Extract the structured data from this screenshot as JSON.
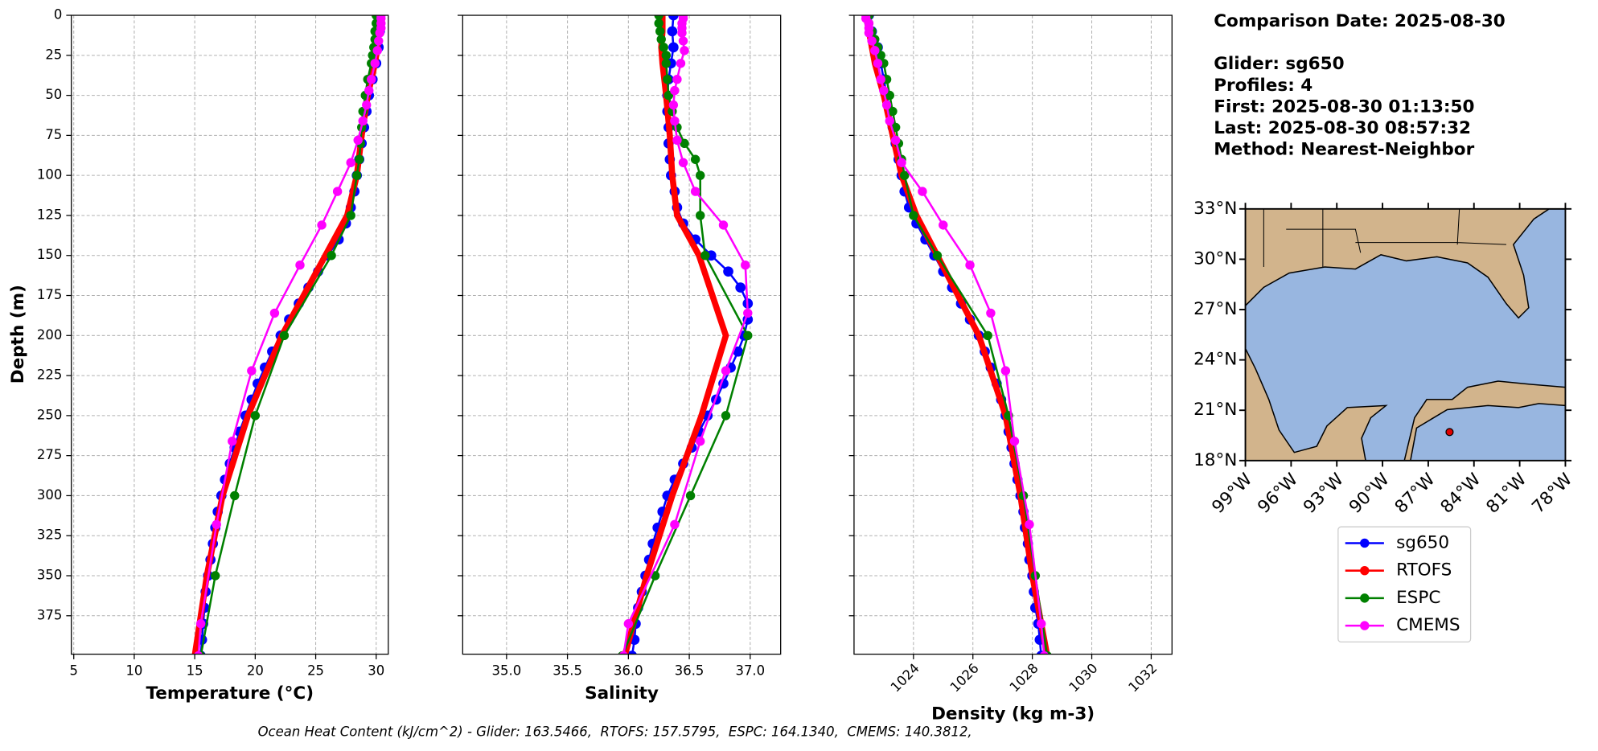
{
  "chart_data": [
    {
      "type": "line",
      "xlabel": "Temperature (°C)",
      "ylabel": "Depth (m)",
      "xlim": [
        4.8,
        31.0
      ],
      "ylim": [
        399,
        0
      ],
      "xticks": [
        5,
        10,
        15,
        20,
        25,
        30
      ],
      "yticks": [
        0,
        25,
        50,
        75,
        100,
        125,
        150,
        175,
        200,
        225,
        250,
        275,
        300,
        325,
        350,
        375
      ],
      "grid": true,
      "series": [
        {
          "name": "sg650",
          "color": "#0000ff",
          "linewidth": 2,
          "marker_size": 5,
          "depths": [
            0,
            10,
            20,
            30,
            40,
            50,
            60,
            70,
            80,
            90,
            100,
            110,
            120,
            130,
            140,
            150,
            160,
            170,
            180,
            190,
            200,
            210,
            220,
            230,
            240,
            250,
            260,
            270,
            280,
            290,
            300,
            310,
            320,
            330,
            340,
            350,
            360,
            370,
            380,
            390,
            400
          ],
          "values": [
            30.3,
            30.3,
            30.2,
            30.0,
            29.7,
            29.4,
            29.2,
            29.0,
            28.8,
            28.6,
            28.4,
            28.2,
            27.9,
            27.5,
            26.9,
            26.0,
            25.2,
            24.4,
            23.6,
            22.8,
            22.1,
            21.4,
            20.8,
            20.2,
            19.7,
            19.2,
            18.7,
            18.3,
            17.9,
            17.5,
            17.2,
            16.9,
            16.7,
            16.5,
            16.3,
            16.1,
            15.9,
            15.8,
            15.7,
            15.6,
            15.5
          ]
        },
        {
          "name": "RTOFS",
          "color": "#ff0000",
          "linewidth": 6,
          "marker_size": 3,
          "depths": [
            0,
            10,
            20,
            30,
            50,
            75,
            100,
            125,
            150,
            200,
            250,
            300,
            350,
            400
          ],
          "values": [
            30.2,
            30.2,
            30.1,
            29.9,
            29.3,
            28.8,
            28.4,
            27.6,
            25.8,
            22.2,
            19.4,
            17.3,
            16.0,
            15.0
          ]
        },
        {
          "name": "ESPC",
          "color": "#008000",
          "linewidth": 2,
          "marker_size": 4.5,
          "depths": [
            0,
            5,
            10,
            15,
            20,
            25,
            30,
            40,
            50,
            60,
            70,
            80,
            90,
            100,
            125,
            150,
            200,
            250,
            300,
            350,
            400
          ],
          "values": [
            30.0,
            30.0,
            29.9,
            29.9,
            29.8,
            29.7,
            29.6,
            29.3,
            29.1,
            28.9,
            28.8,
            28.7,
            28.6,
            28.4,
            27.9,
            26.3,
            22.4,
            20.0,
            18.3,
            16.7,
            15.5
          ]
        },
        {
          "name": "CMEMS",
          "color": "#ff00ff",
          "linewidth": 2,
          "marker_size": 4.5,
          "depths": [
            0,
            2,
            5,
            8,
            11,
            16,
            22,
            30,
            40,
            47,
            56,
            66,
            78,
            92,
            110,
            131,
            156,
            186,
            222,
            266,
            318,
            380,
            400
          ],
          "values": [
            30.4,
            30.4,
            30.4,
            30.4,
            30.3,
            30.2,
            30.1,
            29.9,
            29.6,
            29.4,
            29.2,
            28.9,
            28.5,
            27.9,
            26.8,
            25.5,
            23.7,
            21.6,
            19.7,
            18.1,
            16.8,
            15.5,
            15.3
          ]
        }
      ]
    },
    {
      "type": "line",
      "xlabel": "Salinity",
      "ytick_labels": false,
      "xlim": [
        34.64,
        37.25
      ],
      "ylim": [
        399,
        0
      ],
      "xticks": [
        {
          "value": 35,
          "label": "35.0"
        },
        35.5,
        {
          "value": 36,
          "label": "36.0"
        },
        36.5,
        {
          "value": 37,
          "label": "37.0"
        }
      ],
      "yticks": [
        0,
        25,
        50,
        75,
        100,
        125,
        150,
        175,
        200,
        225,
        250,
        275,
        300,
        325,
        350,
        375
      ],
      "grid": true,
      "series": [
        {
          "name": "sg650",
          "color": "#0000ff",
          "linewidth": 2,
          "marker_size": 5,
          "depths": [
            0,
            10,
            20,
            30,
            40,
            50,
            60,
            70,
            80,
            90,
            100,
            110,
            120,
            130,
            140,
            150,
            160,
            170,
            180,
            190,
            200,
            210,
            220,
            230,
            240,
            250,
            260,
            270,
            280,
            290,
            300,
            310,
            320,
            330,
            340,
            350,
            360,
            370,
            380,
            390,
            400
          ],
          "values": [
            36.37,
            36.36,
            36.37,
            36.35,
            36.33,
            36.32,
            36.32,
            36.33,
            36.33,
            36.34,
            36.35,
            36.38,
            36.4,
            36.45,
            36.55,
            36.68,
            36.82,
            36.92,
            36.98,
            36.98,
            36.95,
            36.9,
            36.84,
            36.78,
            36.72,
            36.65,
            36.58,
            36.52,
            36.45,
            36.38,
            36.32,
            36.28,
            36.24,
            36.2,
            36.17,
            36.14,
            36.11,
            36.08,
            36.06,
            36.05,
            36.03
          ]
        },
        {
          "name": "RTOFS",
          "color": "#ff0000",
          "linewidth": 6,
          "marker_size": 3,
          "depths": [
            0,
            10,
            20,
            30,
            50,
            75,
            100,
            125,
            150,
            200,
            250,
            300,
            350,
            400
          ],
          "values": [
            36.28,
            36.28,
            36.27,
            36.28,
            36.31,
            36.34,
            36.36,
            36.4,
            36.58,
            36.8,
            36.6,
            36.36,
            36.15,
            35.97
          ]
        },
        {
          "name": "ESPC",
          "color": "#008000",
          "linewidth": 2,
          "marker_size": 4.5,
          "depths": [
            0,
            5,
            10,
            15,
            20,
            25,
            30,
            40,
            50,
            60,
            70,
            80,
            90,
            100,
            125,
            150,
            200,
            250,
            300,
            350,
            400
          ],
          "values": [
            36.25,
            36.25,
            36.26,
            36.27,
            36.29,
            36.31,
            36.31,
            36.32,
            36.33,
            36.36,
            36.4,
            36.46,
            36.55,
            36.59,
            36.59,
            36.63,
            36.98,
            36.8,
            36.51,
            36.22,
            35.95
          ]
        },
        {
          "name": "CMEMS",
          "color": "#ff00ff",
          "linewidth": 2,
          "marker_size": 4.5,
          "depths": [
            0,
            2,
            5,
            8,
            11,
            16,
            22,
            30,
            40,
            47,
            56,
            66,
            78,
            92,
            110,
            131,
            156,
            186,
            222,
            266,
            318,
            380,
            400
          ],
          "values": [
            36.45,
            36.45,
            36.44,
            36.44,
            36.44,
            36.45,
            36.46,
            36.43,
            36.4,
            36.38,
            36.37,
            36.38,
            36.4,
            36.45,
            36.55,
            36.78,
            36.96,
            36.98,
            36.8,
            36.59,
            36.38,
            36.0,
            35.96
          ]
        }
      ]
    },
    {
      "type": "line",
      "xlabel": "Density (kg m-3)",
      "ytick_labels": false,
      "xtick_rotation": -45,
      "xlim": [
        1022.0,
        1032.7
      ],
      "ylim": [
        399,
        0
      ],
      "xticks": [
        1024,
        1026,
        1028,
        1030,
        1032
      ],
      "yticks": [
        0,
        25,
        50,
        75,
        100,
        125,
        150,
        175,
        200,
        225,
        250,
        275,
        300,
        325,
        350,
        375
      ],
      "grid": true,
      "series": [
        {
          "name": "sg650",
          "color": "#0000ff",
          "linewidth": 2,
          "marker_size": 5,
          "depths": [
            0,
            10,
            20,
            30,
            40,
            50,
            60,
            70,
            80,
            90,
            100,
            110,
            120,
            130,
            140,
            150,
            160,
            170,
            180,
            190,
            200,
            210,
            220,
            230,
            240,
            250,
            260,
            270,
            280,
            290,
            300,
            310,
            320,
            330,
            340,
            350,
            360,
            370,
            380,
            390,
            400
          ],
          "values": [
            1022.5,
            1022.6,
            1022.8,
            1022.9,
            1023.0,
            1023.1,
            1023.2,
            1023.3,
            1023.4,
            1023.5,
            1023.6,
            1023.7,
            1023.85,
            1024.1,
            1024.4,
            1024.7,
            1025.0,
            1025.3,
            1025.6,
            1025.9,
            1026.2,
            1026.4,
            1026.6,
            1026.8,
            1026.95,
            1027.1,
            1027.2,
            1027.3,
            1027.4,
            1027.5,
            1027.6,
            1027.7,
            1027.75,
            1027.85,
            1027.9,
            1028.0,
            1028.05,
            1028.1,
            1028.2,
            1028.25,
            1028.3
          ]
        },
        {
          "name": "RTOFS",
          "color": "#ff0000",
          "linewidth": 6,
          "marker_size": 3,
          "depths": [
            0,
            10,
            20,
            30,
            50,
            75,
            100,
            125,
            150,
            200,
            250,
            300,
            350,
            400
          ],
          "values": [
            1022.4,
            1022.5,
            1022.6,
            1022.7,
            1023.0,
            1023.3,
            1023.6,
            1024.1,
            1024.8,
            1026.2,
            1027.1,
            1027.6,
            1028.0,
            1028.5
          ]
        },
        {
          "name": "ESPC",
          "color": "#008000",
          "linewidth": 2,
          "marker_size": 4.5,
          "depths": [
            0,
            5,
            10,
            15,
            20,
            25,
            30,
            40,
            50,
            60,
            70,
            80,
            90,
            100,
            125,
            150,
            200,
            250,
            300,
            350,
            400
          ],
          "values": [
            1022.5,
            1022.5,
            1022.6,
            1022.7,
            1022.8,
            1022.9,
            1023.0,
            1023.1,
            1023.2,
            1023.3,
            1023.4,
            1023.5,
            1023.6,
            1023.7,
            1024.0,
            1024.8,
            1026.5,
            1027.2,
            1027.7,
            1028.1,
            1028.5
          ]
        },
        {
          "name": "CMEMS",
          "color": "#ff00ff",
          "linewidth": 2,
          "marker_size": 4.5,
          "depths": [
            0,
            2,
            5,
            8,
            11,
            16,
            22,
            30,
            40,
            47,
            56,
            66,
            78,
            92,
            110,
            131,
            156,
            186,
            222,
            266,
            318,
            380,
            400
          ],
          "values": [
            1022.4,
            1022.4,
            1022.5,
            1022.5,
            1022.5,
            1022.6,
            1022.7,
            1022.8,
            1022.9,
            1023.0,
            1023.1,
            1023.2,
            1023.4,
            1023.6,
            1024.3,
            1025.0,
            1025.9,
            1026.6,
            1027.1,
            1027.4,
            1027.9,
            1028.3,
            1028.4
          ]
        }
      ]
    },
    {
      "type": "map",
      "xlim": [
        -99,
        -78
      ],
      "ylim": [
        18,
        33
      ],
      "xticks": [
        {
          "value": -99,
          "label": "99°W"
        },
        {
          "value": -96,
          "label": "96°W"
        },
        {
          "value": -93,
          "label": "93°W"
        },
        {
          "value": -90,
          "label": "90°W"
        },
        {
          "value": -87,
          "label": "87°W"
        },
        {
          "value": -84,
          "label": "84°W"
        },
        {
          "value": -81,
          "label": "81°W"
        },
        {
          "value": -78,
          "label": "78°W"
        }
      ],
      "yticks": [
        {
          "value": 18,
          "label": "18°N"
        },
        {
          "value": 21,
          "label": "21°N"
        },
        {
          "value": 24,
          "label": "24°N"
        },
        {
          "value": 27,
          "label": "27°N"
        },
        {
          "value": 30,
          "label": "30°N"
        },
        {
          "value": 33,
          "label": "33°N"
        }
      ],
      "point": {
        "x": -85.6,
        "y": 19.7,
        "color": "#e00000"
      }
    }
  ],
  "info": {
    "lines": [
      "Comparison Date: 2025-08-30",
      "",
      "Glider: sg650",
      "Profiles: 4",
      "First: 2025-08-30 01:13:50",
      "Last: 2025-08-30 08:57:32",
      "Method: Nearest-Neighbor"
    ]
  },
  "footer": "Ocean Heat Content (kJ/cm^2) - Glider: 163.5466,  RTOFS: 157.5795,  ESPC: 164.1340,  CMEMS: 140.3812,"
}
